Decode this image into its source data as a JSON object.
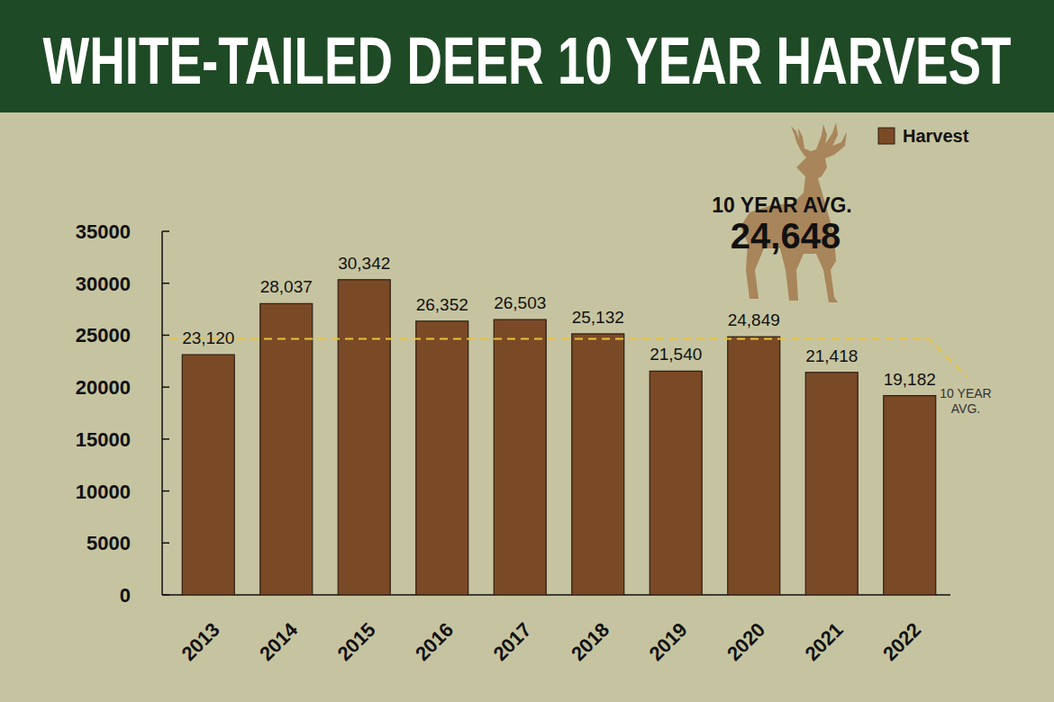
{
  "chart_data": {
    "type": "bar",
    "title": "WHITE-TAILED DEER 10 YEAR HARVEST",
    "categories": [
      "2013",
      "2014",
      "2015",
      "2016",
      "2017",
      "2018",
      "2019",
      "2020",
      "2021",
      "2022"
    ],
    "series": [
      {
        "name": "Harvest",
        "color": "#7a4a27",
        "values": [
          23120,
          28037,
          30342,
          26352,
          26503,
          25132,
          21540,
          24849,
          21418,
          19182
        ],
        "value_labels": [
          "23,120",
          "28,037",
          "30,342",
          "26,352",
          "26,503",
          "25,132",
          "21,540",
          "24,849",
          "21,418",
          "19,182"
        ]
      }
    ],
    "ylim": [
      0,
      35000
    ],
    "yticks": [
      0,
      5000,
      10000,
      15000,
      20000,
      25000,
      30000,
      35000
    ],
    "grid": false,
    "legend": "top-right",
    "data_labels": true,
    "average": {
      "title": "10 YEAR AVG.",
      "value": 24648,
      "value_label": "24,648",
      "line_label": "10 YEAR AVG.",
      "color": "#e8c23a"
    }
  }
}
